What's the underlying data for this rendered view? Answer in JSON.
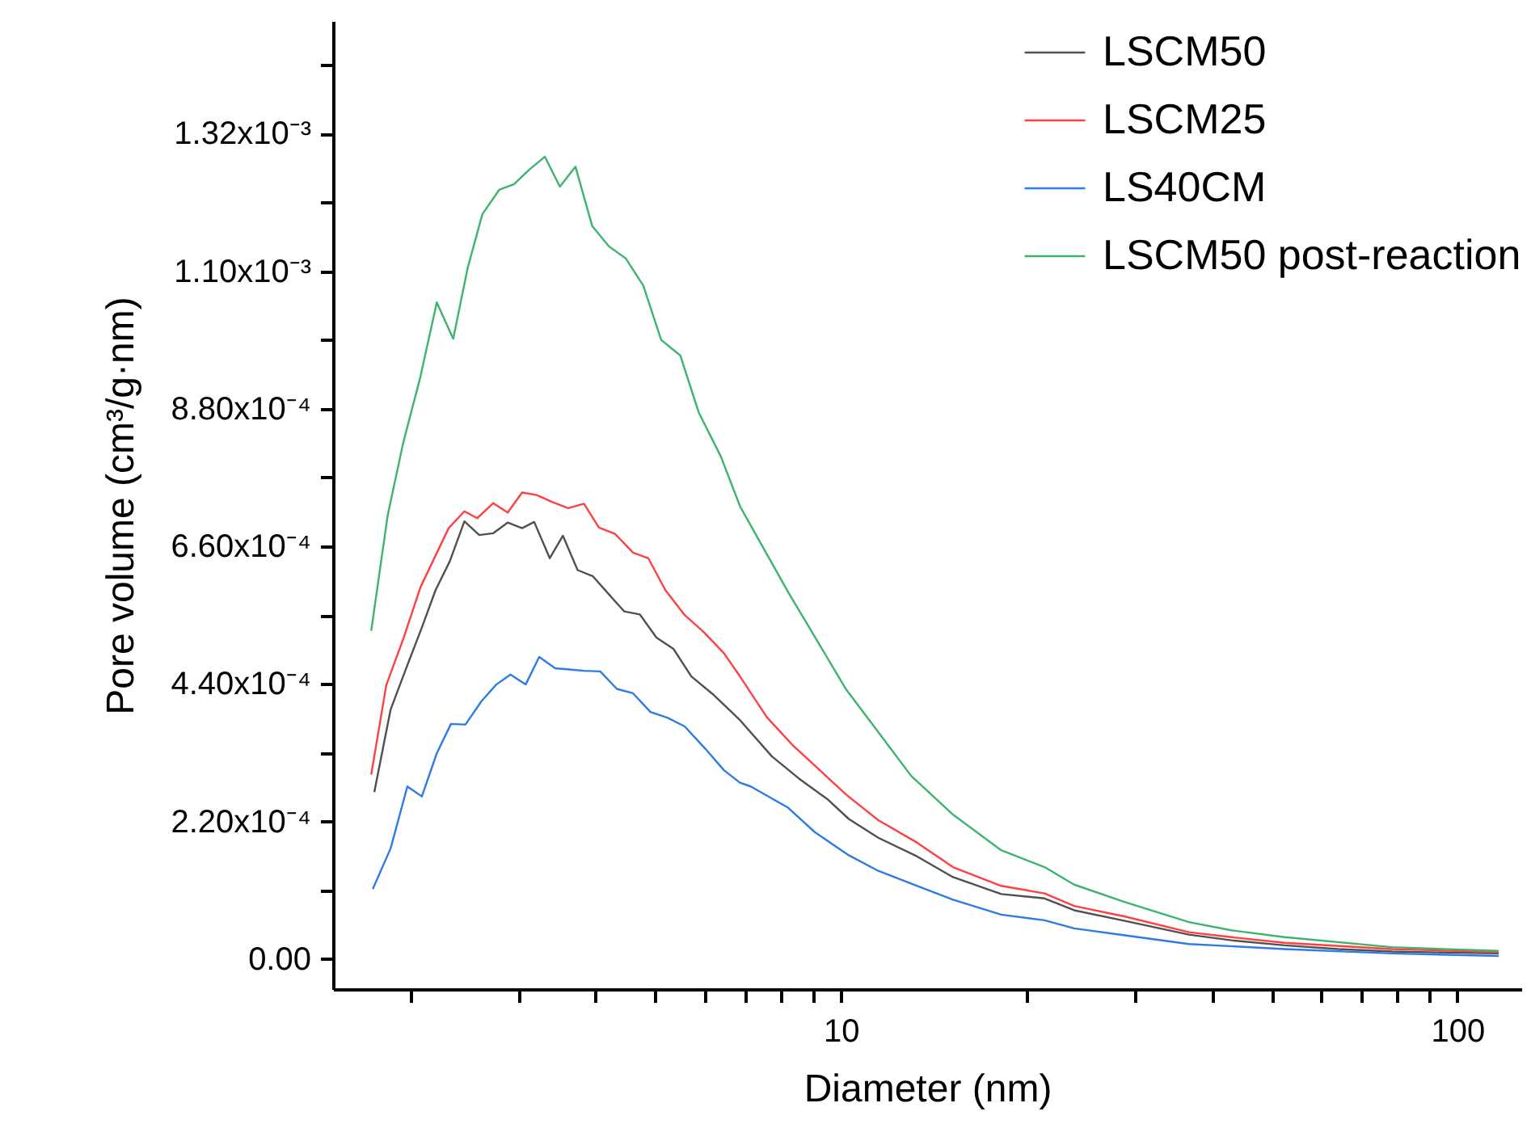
{
  "chart_data": {
    "type": "line",
    "xlabel": "Diameter (nm)",
    "ylabel": "Pore volume (cm³/g·nm)",
    "log": "x",
    "grid": false,
    "legend": "top right",
    "line_style": "solid",
    "marker": "none",
    "xlim": [
      1.5,
      127
    ],
    "xticks": [
      {
        "value": 2,
        "label": null
      },
      {
        "value": 3,
        "label": null
      },
      {
        "value": 4,
        "label": null
      },
      {
        "value": 5,
        "label": null
      },
      {
        "value": 6,
        "label": null
      },
      {
        "value": 7,
        "label": null
      },
      {
        "value": 8,
        "label": null
      },
      {
        "value": 9,
        "label": null
      },
      10,
      {
        "value": 20,
        "label": null
      },
      {
        "value": 30,
        "label": null
      },
      {
        "value": 40,
        "label": null
      },
      {
        "value": 50,
        "label": null
      },
      {
        "value": 60,
        "label": null
      },
      {
        "value": 70,
        "label": null
      },
      {
        "value": 80,
        "label": null
      },
      {
        "value": 90,
        "label": null
      },
      100
    ],
    "ylim": [
      -4.8e-05,
      0.0015
    ],
    "yticks": [
      {
        "value": 0,
        "label": "0.00"
      },
      {
        "value": 0.00011,
        "label": null
      },
      {
        "value": 0.00022,
        "label": "2.20x10⁻⁴"
      },
      {
        "value": 0.00033,
        "label": null
      },
      {
        "value": 0.00044,
        "label": "4.40x10⁻⁴"
      },
      {
        "value": 0.00055,
        "label": null
      },
      {
        "value": 0.00066,
        "label": "6.60x10⁻⁴"
      },
      {
        "value": 0.00077,
        "label": null
      },
      {
        "value": 0.00088,
        "label": "8.80x10⁻⁴"
      },
      {
        "value": 0.00099,
        "label": null
      },
      {
        "value": 0.0011,
        "label": "1.10x10⁻³"
      },
      {
        "value": 0.00121,
        "label": null
      },
      {
        "value": 0.00132,
        "label": "1.32x10⁻³"
      },
      {
        "value": 0.00143,
        "label": null
      }
    ],
    "series": [
      {
        "name": "LSCM50",
        "color": "#505050",
        "x": [
          1.75,
          1.86,
          1.98,
          2.09,
          2.2,
          2.32,
          2.45,
          2.59,
          2.73,
          2.88,
          3.04,
          3.18,
          3.37,
          3.54,
          3.74,
          3.96,
          4.18,
          4.45,
          4.72,
          5.02,
          5.35,
          5.72,
          6.19,
          6.86,
          7.73,
          8.54,
          9.53,
          10.3,
          11.5,
          13.3,
          15.2,
          18.2,
          21.4,
          23.9,
          28.9,
          36.7,
          43.0,
          52.5,
          64.1,
          78.3,
          116.7
        ],
        "values": [
          0.000267,
          0.000399,
          0.00047,
          0.00053,
          0.00059,
          0.000636,
          0.0007,
          0.000678,
          0.000681,
          0.000698,
          0.000689,
          0.000699,
          0.000641,
          0.000677,
          0.000622,
          0.000612,
          0.000586,
          0.000556,
          0.000551,
          0.000514,
          0.000496,
          0.000452,
          0.000424,
          0.000382,
          0.000324,
          0.000289,
          0.000255,
          0.000224,
          0.000194,
          0.000164,
          0.000131,
          0.000104,
          9.7e-05,
          7.8e-05,
          6.1e-05,
          3.9e-05,
          3e-05,
          2.2e-05,
          1.6e-05,
          1.2e-05,
          9e-06
        ]
      },
      {
        "name": "LSCM25",
        "color": "#ff4040",
        "x": [
          1.73,
          1.83,
          1.95,
          2.08,
          2.31,
          2.45,
          2.57,
          2.73,
          2.88,
          3.04,
          3.21,
          3.4,
          3.61,
          3.83,
          4.05,
          4.3,
          4.6,
          4.87,
          5.19,
          5.58,
          5.99,
          6.46,
          6.86,
          7.58,
          8.37,
          10.2,
          11.5,
          13.3,
          15.2,
          18.2,
          21.4,
          23.9,
          28.9,
          36.7,
          43.0,
          52.5,
          78.3,
          116.7
        ],
        "values": [
          0.000295,
          0.000438,
          0.000512,
          0.000595,
          0.000689,
          0.000716,
          0.000705,
          0.000729,
          0.000714,
          0.000746,
          0.000742,
          0.000731,
          0.000721,
          0.000728,
          0.00069,
          0.00068,
          0.00065,
          0.000641,
          0.00059,
          0.00055,
          0.000523,
          0.000489,
          0.000452,
          0.000387,
          0.000341,
          0.000263,
          0.000222,
          0.000186,
          0.000147,
          0.000117,
          0.000105,
          8.5e-05,
          6.8e-05,
          4.3e-05,
          3.5e-05,
          2.6e-05,
          1.6e-05,
          1.1e-05
        ]
      },
      {
        "name": "LS40CM",
        "color": "#2d7be5",
        "x": [
          1.74,
          1.86,
          1.98,
          2.09,
          2.21,
          2.33,
          2.46,
          2.61,
          2.76,
          2.91,
          3.08,
          3.24,
          3.44,
          3.63,
          3.83,
          4.07,
          4.33,
          4.6,
          4.91,
          5.23,
          5.58,
          6.03,
          6.46,
          6.86,
          7.14,
          8.21,
          9.07,
          10.3,
          11.5,
          13.3,
          15.2,
          18.2,
          21.4,
          23.9,
          28.9,
          36.7,
          52.5,
          78.3,
          116.7
        ],
        "values": [
          0.000112,
          0.000177,
          0.000276,
          0.00026,
          0.000329,
          0.000376,
          0.000375,
          0.000412,
          0.000439,
          0.000455,
          0.000439,
          0.000483,
          0.000465,
          0.000463,
          0.000461,
          0.00046,
          0.000432,
          0.000425,
          0.000395,
          0.000386,
          0.000372,
          0.000336,
          0.000302,
          0.000282,
          0.000276,
          0.000242,
          0.000203,
          0.000166,
          0.000141,
          0.000117,
          9.5e-05,
          7.1e-05,
          6.2e-05,
          4.9e-05,
          3.8e-05,
          2.4e-05,
          1.6e-05,
          9e-06,
          5e-06
        ]
      },
      {
        "name": "LSCM50 post-reaction",
        "color": "#3cb46e",
        "x": [
          1.73,
          1.84,
          1.95,
          2.08,
          2.21,
          2.35,
          2.48,
          2.62,
          2.79,
          2.95,
          3.12,
          3.31,
          3.5,
          3.71,
          3.95,
          4.2,
          4.48,
          4.78,
          5.11,
          5.49,
          5.88,
          6.39,
          6.86,
          8.21,
          10.2,
          11.5,
          13.0,
          15.2,
          18.2,
          21.4,
          23.9,
          28.9,
          36.7,
          43.0,
          52.5,
          78.3,
          116.7
        ],
        "values": [
          0.000525,
          0.00071,
          0.000826,
          0.000932,
          0.00105,
          0.000992,
          0.001105,
          0.001191,
          0.00123,
          0.001239,
          0.001262,
          0.001283,
          0.001235,
          0.001267,
          0.001172,
          0.00114,
          0.00112,
          0.001077,
          0.00099,
          0.000965,
          0.000874,
          0.000803,
          0.000724,
          0.000587,
          0.000431,
          0.000363,
          0.000293,
          0.000231,
          0.000174,
          0.000147,
          0.000119,
          9.1e-05,
          5.9e-05,
          4.6e-05,
          3.5e-05,
          1.9e-05,
          1.3e-05
        ]
      }
    ]
  }
}
